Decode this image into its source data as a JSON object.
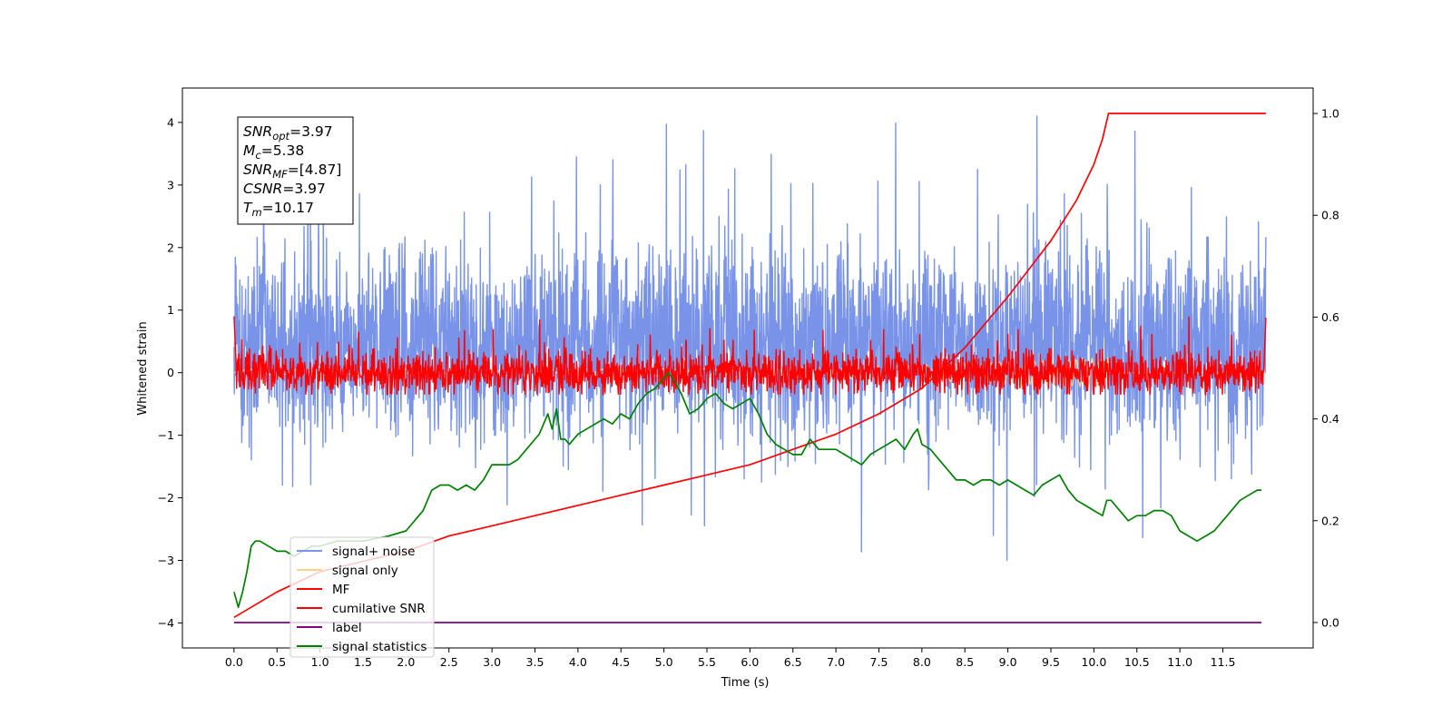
{
  "chart_data": {
    "type": "line",
    "xlabel": "Time (s)",
    "ylabel": "Whitened strain",
    "xlim": [
      -0.6,
      12.55
    ],
    "ylim": [
      -4.4,
      4.55
    ],
    "y2lim": [
      -0.05,
      1.05
    ],
    "grid": false,
    "legend_position": "lower-left",
    "x_ticks": [
      "0.0",
      "0.5",
      "1.0",
      "1.5",
      "2.0",
      "2.5",
      "3.0",
      "3.5",
      "4.0",
      "4.5",
      "5.0",
      "5.5",
      "6.0",
      "6.5",
      "7.0",
      "7.5",
      "8.0",
      "8.5",
      "9.0",
      "9.5",
      "10.0",
      "10.5",
      "11.0",
      "11.5"
    ],
    "y_ticks": [
      "4",
      "3",
      "2",
      "1",
      "0",
      "−1",
      "−2",
      "−3",
      "−4"
    ],
    "y2_ticks": [
      "1.0",
      "0.8",
      "0.6",
      "0.4",
      "0.2",
      "0.0"
    ],
    "info_box": [
      {
        "symbol": "SNR",
        "sub": "opt",
        "value": "=3.97"
      },
      {
        "symbol": "M",
        "sub": "c",
        "value": "=5.38"
      },
      {
        "symbol": "SNR",
        "sub": "MF",
        "value": "=[4.87]"
      },
      {
        "symbol": "CSNR",
        "sub": "",
        "value": "=3.97"
      },
      {
        "symbol": "T",
        "sub": "m",
        "value": "=10.17"
      }
    ],
    "series": [
      {
        "name": "signal+ noise",
        "color": "#7893e8",
        "axis": "left",
        "x_range": [
          0,
          12.0
        ],
        "approx_envelope": [
          -3.0,
          4.1
        ]
      },
      {
        "name": "signal only",
        "color": "#ffd27f",
        "axis": "left",
        "x_range": [
          0,
          12.0
        ],
        "approx_envelope": [
          -0.4,
          0.3
        ]
      },
      {
        "name": "MF",
        "color": "#ff0000",
        "axis": "left",
        "x_range": [
          0,
          12.0
        ],
        "approx_envelope": [
          -0.35,
          0.9
        ]
      },
      {
        "name": "cumilative SNR",
        "color": "#ff0000",
        "axis": "right",
        "x": [
          0.0,
          0.5,
          1.0,
          1.5,
          2.0,
          2.5,
          3.0,
          3.5,
          4.0,
          4.5,
          5.0,
          5.5,
          6.0,
          6.5,
          7.0,
          7.5,
          8.0,
          8.5,
          9.0,
          9.5,
          9.8,
          10.0,
          10.1,
          10.17,
          12.0
        ],
        "values": [
          0.01,
          0.06,
          0.1,
          0.12,
          0.14,
          0.17,
          0.19,
          0.21,
          0.23,
          0.25,
          0.27,
          0.29,
          0.31,
          0.34,
          0.37,
          0.41,
          0.46,
          0.54,
          0.64,
          0.75,
          0.83,
          0.9,
          0.95,
          1.0,
          1.0
        ]
      },
      {
        "name": "label",
        "color": "#800080",
        "axis": "right",
        "x": [
          0.0,
          11.95
        ],
        "values": [
          0.0,
          0.0
        ]
      },
      {
        "name": "signal statistics",
        "color": "#008000",
        "axis": "right",
        "x": [
          0.0,
          0.05,
          0.1,
          0.15,
          0.2,
          0.25,
          0.3,
          0.4,
          0.5,
          0.6,
          0.7,
          0.8,
          0.9,
          1.0,
          1.2,
          1.5,
          1.8,
          2.0,
          2.2,
          2.3,
          2.4,
          2.5,
          2.6,
          2.7,
          2.8,
          2.9,
          3.0,
          3.2,
          3.3,
          3.4,
          3.5,
          3.55,
          3.6,
          3.65,
          3.7,
          3.75,
          3.8,
          3.85,
          3.9,
          4.0,
          4.1,
          4.3,
          4.4,
          4.5,
          4.6,
          4.7,
          4.8,
          4.9,
          5.0,
          5.05,
          5.1,
          5.2,
          5.3,
          5.4,
          5.5,
          5.6,
          5.7,
          5.8,
          5.9,
          6.0,
          6.1,
          6.2,
          6.3,
          6.4,
          6.5,
          6.6,
          6.7,
          6.8,
          6.9,
          7.0,
          7.1,
          7.2,
          7.3,
          7.4,
          7.5,
          7.6,
          7.7,
          7.8,
          7.9,
          7.95,
          8.0,
          8.1,
          8.2,
          8.3,
          8.4,
          8.5,
          8.6,
          8.7,
          8.8,
          8.9,
          9.0,
          9.1,
          9.2,
          9.3,
          9.4,
          9.5,
          9.6,
          9.7,
          9.8,
          9.9,
          10.0,
          10.1,
          10.15,
          10.2,
          10.3,
          10.4,
          10.5,
          10.6,
          10.7,
          10.8,
          10.9,
          11.0,
          11.1,
          11.2,
          11.3,
          11.4,
          11.5,
          11.6,
          11.7,
          11.8,
          11.9,
          11.95
        ],
        "values": [
          0.06,
          0.03,
          0.06,
          0.1,
          0.15,
          0.16,
          0.16,
          0.15,
          0.14,
          0.14,
          0.13,
          0.14,
          0.15,
          0.15,
          0.16,
          0.16,
          0.17,
          0.18,
          0.22,
          0.26,
          0.27,
          0.27,
          0.26,
          0.27,
          0.26,
          0.28,
          0.31,
          0.31,
          0.32,
          0.34,
          0.36,
          0.37,
          0.39,
          0.41,
          0.38,
          0.42,
          0.36,
          0.36,
          0.35,
          0.37,
          0.38,
          0.4,
          0.39,
          0.41,
          0.4,
          0.43,
          0.45,
          0.46,
          0.48,
          0.49,
          0.48,
          0.45,
          0.41,
          0.42,
          0.44,
          0.45,
          0.43,
          0.42,
          0.43,
          0.44,
          0.41,
          0.37,
          0.35,
          0.34,
          0.33,
          0.33,
          0.36,
          0.34,
          0.34,
          0.34,
          0.33,
          0.32,
          0.31,
          0.33,
          0.34,
          0.35,
          0.36,
          0.34,
          0.37,
          0.38,
          0.35,
          0.34,
          0.32,
          0.3,
          0.28,
          0.28,
          0.27,
          0.28,
          0.28,
          0.27,
          0.28,
          0.27,
          0.26,
          0.25,
          0.27,
          0.28,
          0.29,
          0.26,
          0.24,
          0.23,
          0.22,
          0.21,
          0.24,
          0.24,
          0.22,
          0.2,
          0.21,
          0.21,
          0.22,
          0.22,
          0.21,
          0.18,
          0.17,
          0.16,
          0.17,
          0.18,
          0.2,
          0.22,
          0.24,
          0.25,
          0.26,
          0.26
        ]
      }
    ]
  }
}
